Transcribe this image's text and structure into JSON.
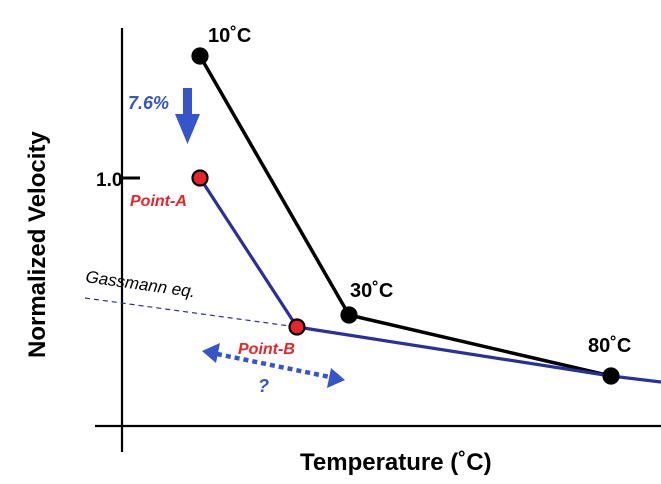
{
  "chart_data": {
    "type": "line",
    "title": "",
    "xlabel": "Temperature (˚C)",
    "ylabel": "Normalized Velocity",
    "y_tick_label": "1.0",
    "x_unit": "˚C",
    "series": [
      {
        "points": [
          {
            "label": "10˚C",
            "x": 10,
            "y": 1.25
          },
          {
            "label": "30˚C",
            "x": 30,
            "y": 0.51
          },
          {
            "label": "80˚C",
            "x": 80,
            "y": 0.28
          }
        ]
      },
      {
        "points": [
          {
            "label": "Point-A",
            "x": 10,
            "y": 1.0
          },
          {
            "label": "Point-B",
            "x": 22,
            "y": 0.47
          },
          {
            "label": "",
            "x": 80,
            "y": 0.28
          },
          {
            "label": "",
            "x": 90,
            "y": 0.26
          }
        ]
      }
    ],
    "annotations": {
      "drop_percent": "7.6%",
      "gassmann": "Gassmann eq.",
      "question": "?"
    },
    "colors": {
      "black_series": "#000000",
      "blue_series": "#2a2f9a",
      "point_fill_red": "#e8242a",
      "arrow_blue": "#3555c8",
      "text_red": "#e8242a",
      "text_blue": "#3555c8",
      "dashed_line": "#2a2f9a"
    }
  }
}
